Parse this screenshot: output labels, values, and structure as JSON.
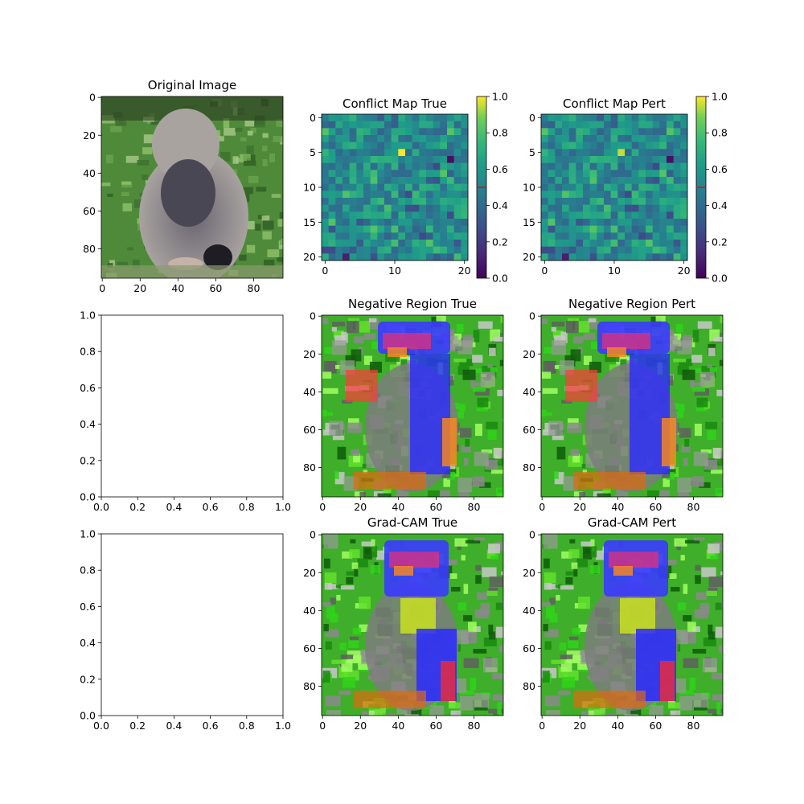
{
  "figure": {
    "panels": [
      {
        "id": "original",
        "title": "Original Image"
      },
      {
        "id": "conflict_true",
        "title": "Conflict Map True"
      },
      {
        "id": "conflict_pert",
        "title": "Conflict Map Pert"
      },
      {
        "id": "empty_1",
        "title": ""
      },
      {
        "id": "negative_true",
        "title": "Negative Region True"
      },
      {
        "id": "negative_pert",
        "title": "Negative Region Pert"
      },
      {
        "id": "empty_2",
        "title": ""
      },
      {
        "id": "gradcam_true",
        "title": "Grad-CAM True"
      },
      {
        "id": "gradcam_pert",
        "title": "Grad-CAM Pert"
      }
    ]
  },
  "chart_data": [
    {
      "id": "original",
      "type": "image",
      "title": "Original Image",
      "content": "photo of a Pallas's cat sitting in grass",
      "x_ticks": [
        0,
        20,
        40,
        60,
        80
      ],
      "y_ticks": [
        0,
        20,
        40,
        60,
        80
      ],
      "xlim": [
        -0.5,
        95.5
      ],
      "ylim": [
        95.5,
        -0.5
      ]
    },
    {
      "id": "conflict_true",
      "type": "heatmap",
      "title": "Conflict Map True",
      "grid_size": [
        21,
        21
      ],
      "x_ticks": [
        0,
        10,
        20
      ],
      "y_ticks": [
        0,
        5,
        10,
        15,
        20
      ],
      "base_value": 0.55,
      "highlights": [
        {
          "row": 5,
          "col": 11,
          "value": 1.0
        },
        {
          "row": 6,
          "col": 18,
          "value": 0.05
        },
        {
          "row": 20,
          "col": 3,
          "value": 0.1
        }
      ],
      "colorbar": {
        "ticks": [
          0.0,
          0.2,
          0.4,
          0.6,
          0.8,
          1.0
        ],
        "tick_labels": [
          "0.0",
          "0.2",
          "0.4",
          "0.6",
          "0.8",
          "1.0"
        ],
        "marker_value": 0.5,
        "marker_color": "#ff0000"
      }
    },
    {
      "id": "conflict_pert",
      "type": "heatmap",
      "title": "Conflict Map Pert",
      "grid_size": [
        21,
        21
      ],
      "x_ticks": [
        0,
        10,
        20
      ],
      "y_ticks": [
        0,
        5,
        10,
        15,
        20
      ],
      "base_value": 0.55,
      "highlights": [
        {
          "row": 5,
          "col": 11,
          "value": 0.95
        },
        {
          "row": 6,
          "col": 18,
          "value": 0.05
        },
        {
          "row": 20,
          "col": 3,
          "value": 0.1
        }
      ],
      "colorbar": {
        "ticks": [
          0.0,
          0.2,
          0.4,
          0.6,
          0.8,
          1.0
        ],
        "tick_labels": [
          "0.0",
          "0.2",
          "0.4",
          "0.6",
          "0.8",
          "1.0"
        ],
        "marker_value": 0.5,
        "marker_color": "#ff0000"
      }
    },
    {
      "id": "empty_1",
      "type": "empty_axes",
      "x_ticks": [
        "0.0",
        "0.2",
        "0.4",
        "0.6",
        "0.8",
        "1.0"
      ],
      "y_ticks": [
        "0.0",
        "0.2",
        "0.4",
        "0.6",
        "0.8",
        "1.0"
      ],
      "xlim": [
        0,
        1
      ],
      "ylim": [
        0,
        1
      ]
    },
    {
      "id": "negative_true",
      "type": "image",
      "title": "Negative Region True",
      "content": "cat image overlaid with rainbow-colored negative-region highlights on green background",
      "x_ticks": [
        0,
        20,
        40,
        60,
        80
      ],
      "y_ticks": [
        0,
        20,
        40,
        60,
        80
      ]
    },
    {
      "id": "negative_pert",
      "type": "image",
      "title": "Negative Region Pert",
      "content": "cat image overlaid with rainbow-colored negative-region highlights on green background",
      "x_ticks": [
        0,
        20,
        40,
        60,
        80
      ],
      "y_ticks": [
        0,
        20,
        40,
        60,
        80
      ]
    },
    {
      "id": "empty_2",
      "type": "empty_axes",
      "x_ticks": [
        "0.0",
        "0.2",
        "0.4",
        "0.6",
        "0.8",
        "1.0"
      ],
      "y_ticks": [
        "0.0",
        "0.2",
        "0.4",
        "0.6",
        "0.8",
        "1.0"
      ],
      "xlim": [
        0,
        1
      ],
      "ylim": [
        0,
        1
      ]
    },
    {
      "id": "gradcam_true",
      "type": "image",
      "title": "Grad-CAM True",
      "content": "cat image overlaid with rainbow Grad-CAM highlights on green background",
      "x_ticks": [
        0,
        20,
        40,
        60,
        80
      ],
      "y_ticks": [
        0,
        20,
        40,
        60,
        80
      ]
    },
    {
      "id": "gradcam_pert",
      "type": "image",
      "title": "Grad-CAM Pert",
      "content": "cat image overlaid with rainbow Grad-CAM highlights on green background",
      "x_ticks": [
        0,
        20,
        40,
        60,
        80
      ],
      "y_ticks": [
        0,
        20,
        40,
        60,
        80
      ]
    }
  ]
}
